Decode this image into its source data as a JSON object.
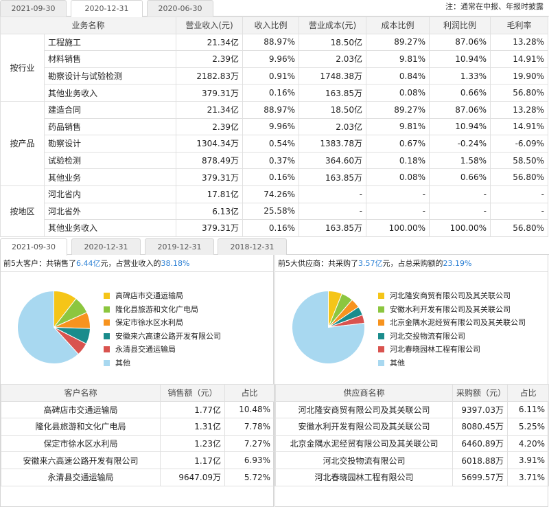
{
  "top_tabs": [
    "2021-09-30",
    "2020-12-31",
    "2020-06-30"
  ],
  "top_active": 1,
  "note": "注：通常在中报、年报时披露",
  "main_headers": [
    "业务名称",
    "营业收入(元)",
    "收入比例",
    "营业成本(元)",
    "成本比例",
    "利润比例",
    "毛利率"
  ],
  "groups": [
    {
      "label": "按行业",
      "rows": [
        [
          "工程施工",
          "21.34亿",
          "88.97%",
          "18.50亿",
          "89.27%",
          "87.06%",
          "13.28%"
        ],
        [
          "材料销售",
          "2.39亿",
          "9.96%",
          "2.03亿",
          "9.81%",
          "10.94%",
          "14.91%"
        ],
        [
          "勘察设计与试验检测",
          "2182.83万",
          "0.91%",
          "1748.38万",
          "0.84%",
          "1.33%",
          "19.90%"
        ],
        [
          "其他业务收入",
          "379.31万",
          "0.16%",
          "163.85万",
          "0.08%",
          "0.66%",
          "56.80%"
        ]
      ]
    },
    {
      "label": "按产品",
      "rows": [
        [
          "建造合同",
          "21.34亿",
          "88.97%",
          "18.50亿",
          "89.27%",
          "87.06%",
          "13.28%"
        ],
        [
          "药品销售",
          "2.39亿",
          "9.96%",
          "2.03亿",
          "9.81%",
          "10.94%",
          "14.91%"
        ],
        [
          "勘察设计",
          "1304.34万",
          "0.54%",
          "1383.78万",
          "0.67%",
          "-0.24%",
          "-6.09%"
        ],
        [
          "试验检测",
          "878.49万",
          "0.37%",
          "364.60万",
          "0.18%",
          "1.58%",
          "58.50%"
        ],
        [
          "其他业务",
          "379.31万",
          "0.16%",
          "163.85万",
          "0.08%",
          "0.66%",
          "56.80%"
        ]
      ]
    },
    {
      "label": "按地区",
      "rows": [
        [
          "河北省内",
          "17.81亿",
          "74.26%",
          "-",
          "-",
          "-",
          "-"
        ],
        [
          "河北省外",
          "6.13亿",
          "25.58%",
          "-",
          "-",
          "-",
          "-"
        ],
        [
          "其他业务收入",
          "379.31万",
          "0.16%",
          "163.85万",
          "100.00%",
          "100.00%",
          "56.80%"
        ]
      ]
    }
  ],
  "bottom_tabs": [
    "2021-09-30",
    "2020-12-31",
    "2019-12-31",
    "2018-12-31"
  ],
  "bottom_active": 0,
  "customers": {
    "head_prefix": "前5大客户：共销售了",
    "amount": "6.44亿",
    "head_mid": "元，占营业收入的",
    "pct": "38.18%",
    "legend": [
      "高碑店市交通运输局",
      "隆化县旅游和文化广电局",
      "保定市徐水区水利局",
      "安徽来六高速公路开发有限公司",
      "永清县交通运输局",
      "其他"
    ],
    "headers": [
      "客户名称",
      "销售额（元）",
      "占比"
    ],
    "rows": [
      [
        "高碑店市交通运输局",
        "1.77亿",
        "10.48%"
      ],
      [
        "隆化县旅游和文化广电局",
        "1.31亿",
        "7.78%"
      ],
      [
        "保定市徐水区水利局",
        "1.23亿",
        "7.27%"
      ],
      [
        "安徽来六高速公路开发有限公司",
        "1.17亿",
        "6.93%"
      ],
      [
        "永清县交通运输局",
        "9647.09万",
        "5.72%"
      ]
    ]
  },
  "suppliers": {
    "head_prefix": "前5大供应商：共采购了",
    "amount": "3.57亿",
    "head_mid": "元，占总采购额的",
    "pct": "23.19%",
    "legend": [
      "河北隆安商贸有限公司及其关联公司",
      "安徽水利开发有限公司及其关联公司",
      "北京金隅水泥经贸有限公司及其关联公司",
      "河北交投物流有限公司",
      "河北春晓园林工程有限公司",
      "其他"
    ],
    "headers": [
      "供应商名称",
      "采购额（元）",
      "占比"
    ],
    "rows": [
      [
        "河北隆安商贸有限公司及其关联公司",
        "9397.03万",
        "6.11%"
      ],
      [
        "安徽水利开发有限公司及其关联公司",
        "8080.45万",
        "5.25%"
      ],
      [
        "北京金隅水泥经贸有限公司及其关联公司",
        "6460.89万",
        "4.20%"
      ],
      [
        "河北交投物流有限公司",
        "6018.88万",
        "3.91%"
      ],
      [
        "河北春晓园林工程有限公司",
        "5699.57万",
        "3.71%"
      ]
    ]
  },
  "chart_data": [
    {
      "type": "pie",
      "categories": [
        "高碑店市交通运输局",
        "隆化县旅游和文化广电局",
        "保定市徐水区水利局",
        "安徽来六高速公路开发有限公司",
        "永清县交通运输局",
        "其他"
      ],
      "values": [
        10.48,
        7.78,
        7.27,
        6.93,
        5.72,
        61.82
      ]
    },
    {
      "type": "pie",
      "categories": [
        "河北隆安商贸有限公司及其关联公司",
        "安徽水利开发有限公司及其关联公司",
        "北京金隅水泥经贸有限公司及其关联公司",
        "河北交投物流有限公司",
        "河北春晓园林工程有限公司",
        "其他"
      ],
      "values": [
        6.11,
        5.25,
        4.2,
        3.91,
        3.71,
        76.82
      ]
    }
  ],
  "colors": [
    "#f5c518",
    "#8cc63f",
    "#f7931e",
    "#1a8c8c",
    "#d9534f",
    "#a8d8f0"
  ]
}
